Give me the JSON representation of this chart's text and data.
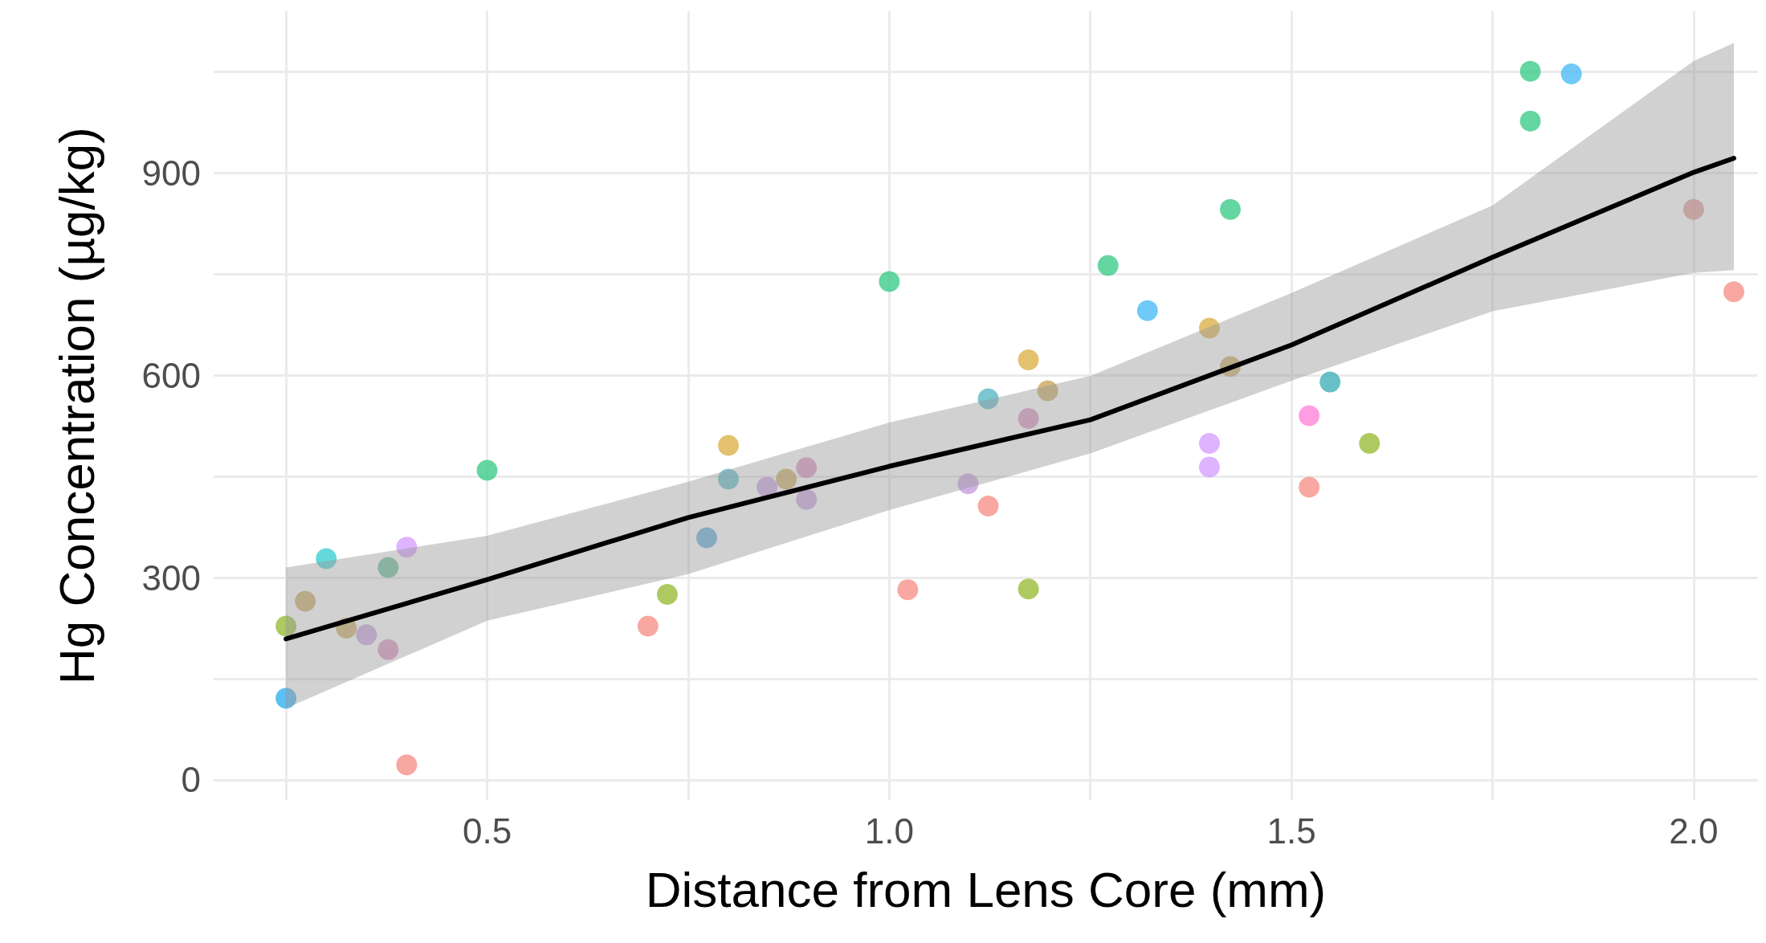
{
  "chart_data": {
    "type": "scatter",
    "xlabel": "Distance from Lens Core (mm)",
    "ylabel": "Hg Concentration (µg/kg)",
    "xlim": [
      0.16,
      2.08
    ],
    "ylim": [
      -30,
      1140
    ],
    "xticks": [
      {
        "value": 0.25,
        "label": null
      },
      0.5,
      {
        "value": 0.75,
        "label": null
      },
      {
        "value": 1,
        "label": "1.0"
      },
      {
        "value": 1.25,
        "label": null
      },
      1.5,
      {
        "value": 1.75,
        "label": null
      },
      {
        "value": 2,
        "label": "2.0"
      }
    ],
    "yticks": [
      0,
      {
        "value": 150,
        "label": null
      },
      300,
      {
        "value": 450,
        "label": null
      },
      600,
      {
        "value": 750,
        "label": null
      },
      900,
      {
        "value": 1050,
        "label": null
      }
    ],
    "grid": true,
    "series": [
      {
        "marker": "circle",
        "x": [
          0.25,
          0.25,
          0.274,
          0.3,
          0.325,
          0.35,
          0.377,
          0.377,
          0.4,
          0.4,
          0.5,
          0.7,
          0.724,
          0.773,
          0.8,
          0.8,
          0.848,
          0.872,
          0.897,
          0.897,
          1.0,
          1.023,
          1.098,
          1.123,
          1.123,
          1.173,
          1.173,
          1.173,
          1.197,
          1.272,
          1.321,
          1.398,
          1.398,
          1.398,
          1.424,
          1.424,
          1.522,
          1.522,
          1.548,
          1.597,
          1.797,
          1.797,
          1.848,
          2.0,
          2.05
        ],
        "values": [
          121,
          228,
          265,
          328,
          225,
          215,
          315,
          193,
          345,
          22,
          459,
          228,
          275,
          359,
          496,
          446,
          434,
          446,
          463,
          416,
          739,
          282,
          439,
          565,
          406,
          623,
          536,
          283,
          577,
          763,
          696,
          670,
          499,
          464,
          613,
          846,
          540,
          434,
          590,
          499,
          1051,
          977,
          1047,
          846,
          724
        ],
        "colors": [
          "#35b0f0",
          "#98bb38",
          "#c9a85c",
          "#3dcfd2",
          "#c9a85c",
          "#c59ee0",
          "#5fb890",
          "#d98fc0",
          "#d6a0ff",
          "#f6918a",
          "#3dcc8a",
          "#f6918a",
          "#98bb38",
          "#5aa8d8",
          "#dcb24a",
          "#5ab8c4",
          "#c59ee0",
          "#c9a85c",
          "#d98fc0",
          "#c59ee0",
          "#3dcc8a",
          "#f6918a",
          "#c59ee0",
          "#5ab8c4",
          "#f6918a",
          "#dcb24a",
          "#d98fc0",
          "#98bb38",
          "#c9a85c",
          "#3dcc8a",
          "#4cbcf5",
          "#dcb24a",
          "#d6a0ff",
          "#d6a0ff",
          "#c9a85c",
          "#3dcc8a",
          "#ff85dc",
          "#f6918a",
          "#43b0b8",
          "#98bb38",
          "#3dcc8a",
          "#3dcc8a",
          "#4cbcf5",
          "#e09a94",
          "#f6918a"
        ]
      },
      {
        "type": "line",
        "color": "#000000",
        "x": [
          0.25,
          0.5,
          0.75,
          1.0,
          1.25,
          1.5,
          1.75,
          2.0,
          2.05
        ],
        "values": [
          209,
          297,
          389,
          465,
          534,
          645,
          775,
          901,
          922
        ],
        "lower": [
          106,
          236,
          305,
          400,
          484,
          592,
          695,
          752,
          756
        ],
        "upper": [
          315,
          362,
          442,
          530,
          599,
          722,
          852,
          1066,
          1093
        ]
      }
    ]
  }
}
